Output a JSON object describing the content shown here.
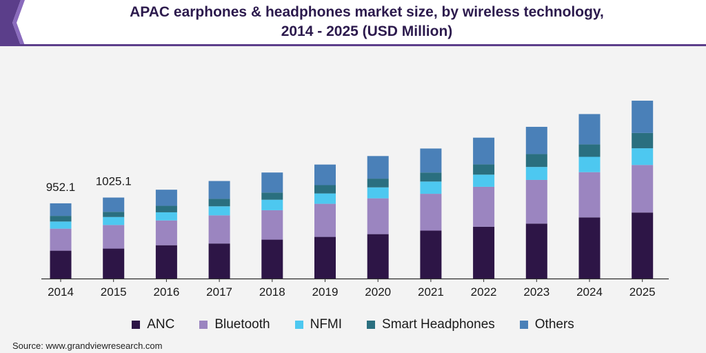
{
  "title": {
    "line1": "APAC earphones & headphones market size, by wireless technology,",
    "line2": "2014 - 2025 (USD Million)"
  },
  "source": "Source: www.grandviewresearch.com",
  "colors": {
    "accent": "#5b3e8a",
    "title": "#2c1a4d",
    "axis": "#2b2b2b"
  },
  "chart_data": {
    "type": "bar",
    "stacked": true,
    "categories": [
      "2014",
      "2015",
      "2016",
      "2017",
      "2018",
      "2019",
      "2020",
      "2021",
      "2022",
      "2023",
      "2024",
      "2025"
    ],
    "series": [
      {
        "name": "ANC",
        "color": "#2d1546",
        "values": [
          352.6,
          379.1,
          421.7,
          443.4,
          492.5,
          527.2,
          562.0,
          606.7,
          655.8,
          695.5,
          773.9,
          835.6
        ]
      },
      {
        "name": "Bluetooth",
        "color": "#9b85c0",
        "values": [
          278.8,
          298.6,
          313.7,
          356.5,
          372.1,
          418.8,
          453.5,
          466.2,
          505.5,
          552.9,
          572.6,
          601.6
        ]
      },
      {
        "name": "NFMI",
        "color": "#4dc8f0",
        "values": [
          90.1,
          101.0,
          102.9,
          114.3,
          132.9,
          131.1,
          138.4,
          154.8,
          153.7,
          164.0,
          193.9,
          211.8
        ]
      },
      {
        "name": "Smart Headphones",
        "color": "#2a6f7f",
        "values": [
          71.8,
          65.7,
          82.1,
          94.7,
          91.0,
          105.4,
          110.7,
          114.0,
          130.3,
          163.4,
          158.0,
          193.5
        ]
      },
      {
        "name": "Others",
        "color": "#4a80b8",
        "values": [
          158.8,
          180.7,
          204.1,
          225.6,
          253.5,
          260.4,
          286.1,
          304.1,
          337.9,
          344.6,
          383.6,
          408.8
        ]
      }
    ],
    "data_labels": {
      "2014": "952.1",
      "2015": "1025.1"
    },
    "ylim": [
      0,
      2400
    ],
    "grid": false,
    "legend_position": "bottom"
  }
}
